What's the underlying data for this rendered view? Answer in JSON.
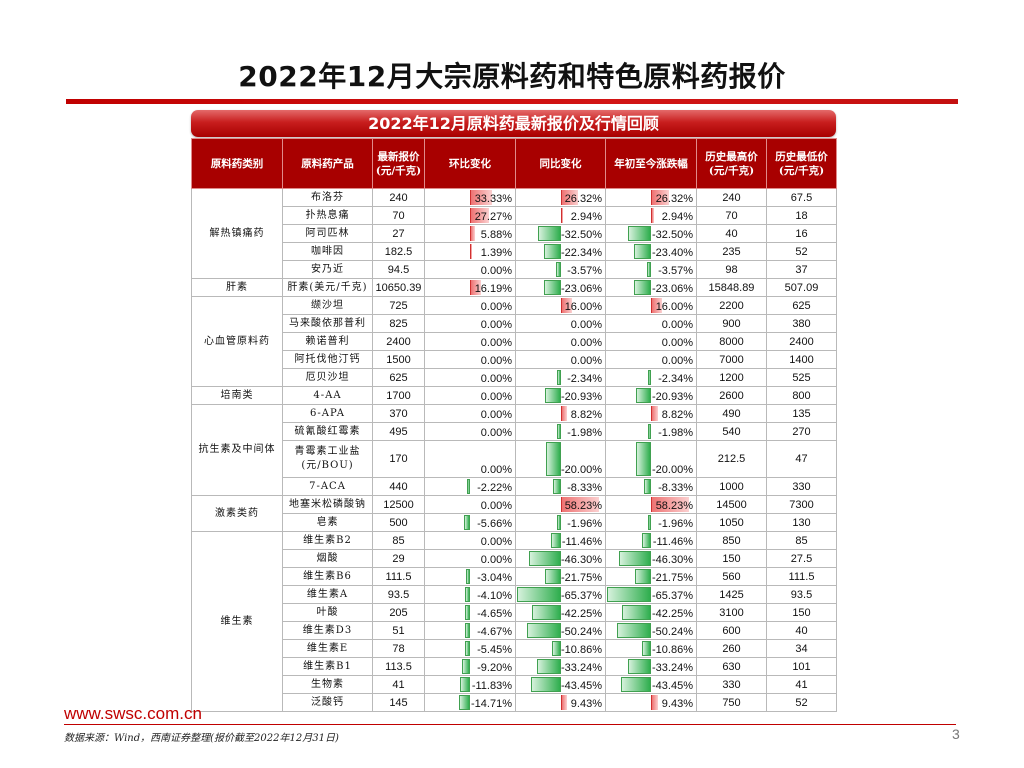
{
  "title": "2022年12月大宗原料药和特色原料药报价",
  "banner": "2022年12月原料药最新报价及行情回顾",
  "headers": [
    "原料药类别",
    "原料药产品",
    "最新报价 (元/千克)",
    "环比变化",
    "同比变化",
    "年初至今涨跌幅",
    "历史最高价 (元/千克)",
    "历史最低价 (元/千克)"
  ],
  "rows": [
    {
      "category": "解热镇痛药",
      "product": "布洛芬",
      "price": "240",
      "mom": "33.33%",
      "yoy": "26.32%",
      "ytd": "26.32%",
      "high": "240",
      "low": "67.5",
      "mom_v": 33.33,
      "yoy_v": 26.32,
      "ytd_v": 26.32
    },
    {
      "category": "",
      "product": "扑热息痛",
      "price": "70",
      "mom": "27.27%",
      "yoy": "2.94%",
      "ytd": "2.94%",
      "high": "70",
      "low": "18",
      "mom_v": 27.27,
      "yoy_v": 2.94,
      "ytd_v": 2.94
    },
    {
      "category": "",
      "product": "阿司匹林",
      "price": "27",
      "mom": "5.88%",
      "yoy": "-32.50%",
      "ytd": "-32.50%",
      "high": "40",
      "low": "16",
      "mom_v": 5.88,
      "yoy_v": -32.5,
      "ytd_v": -32.5
    },
    {
      "category": "",
      "product": "咖啡因",
      "price": "182.5",
      "mom": "1.39%",
      "yoy": "-22.34%",
      "ytd": "-23.40%",
      "high": "235",
      "low": "52",
      "mom_v": 1.39,
      "yoy_v": -22.34,
      "ytd_v": -23.4
    },
    {
      "category": "",
      "product": "安乃近",
      "price": "94.5",
      "mom": "0.00%",
      "yoy": "-3.57%",
      "ytd": "-3.57%",
      "high": "98",
      "low": "37",
      "mom_v": 0,
      "yoy_v": -3.57,
      "ytd_v": -3.57
    },
    {
      "category": "肝素",
      "product": "肝素(美元/千克)",
      "price": "10650.39",
      "mom": "16.19%",
      "yoy": "-23.06%",
      "ytd": "-23.06%",
      "high": "15848.89",
      "low": "507.09",
      "mom_v": 16.19,
      "yoy_v": -23.06,
      "ytd_v": -23.06
    },
    {
      "category": "心血管原料药",
      "product": "缬沙坦",
      "price": "725",
      "mom": "0.00%",
      "yoy": "16.00%",
      "ytd": "16.00%",
      "high": "2200",
      "low": "625",
      "mom_v": 0,
      "yoy_v": 16,
      "ytd_v": 16
    },
    {
      "category": "",
      "product": "马来酸依那普利",
      "price": "825",
      "mom": "0.00%",
      "yoy": "0.00%",
      "ytd": "0.00%",
      "high": "900",
      "low": "380",
      "mom_v": 0,
      "yoy_v": 0,
      "ytd_v": 0
    },
    {
      "category": "",
      "product": "赖诺普利",
      "price": "2400",
      "mom": "0.00%",
      "yoy": "0.00%",
      "ytd": "0.00%",
      "high": "8000",
      "low": "2400",
      "mom_v": 0,
      "yoy_v": 0,
      "ytd_v": 0
    },
    {
      "category": "",
      "product": "阿托伐他汀钙",
      "price": "1500",
      "mom": "0.00%",
      "yoy": "0.00%",
      "ytd": "0.00%",
      "high": "7000",
      "low": "1400",
      "mom_v": 0,
      "yoy_v": 0,
      "ytd_v": 0
    },
    {
      "category": "",
      "product": "厄贝沙坦",
      "price": "625",
      "mom": "0.00%",
      "yoy": "-2.34%",
      "ytd": "-2.34%",
      "high": "1200",
      "low": "525",
      "mom_v": 0,
      "yoy_v": -2.34,
      "ytd_v": -2.34
    },
    {
      "category": "培南类",
      "product": "4-AA",
      "price": "1700",
      "mom": "0.00%",
      "yoy": "-20.93%",
      "ytd": "-20.93%",
      "high": "2600",
      "low": "800",
      "mom_v": 0,
      "yoy_v": -20.93,
      "ytd_v": -20.93
    },
    {
      "category": "抗生素及中间体",
      "product": "6-APA",
      "price": "370",
      "mom": "0.00%",
      "yoy": "8.82%",
      "ytd": "8.82%",
      "high": "490",
      "low": "135",
      "mom_v": 0,
      "yoy_v": 8.82,
      "ytd_v": 8.82
    },
    {
      "category": "",
      "product": "硫氰酸红霉素",
      "price": "495",
      "mom": "0.00%",
      "yoy": "-1.98%",
      "ytd": "-1.98%",
      "high": "540",
      "low": "270",
      "mom_v": 0,
      "yoy_v": -1.98,
      "ytd_v": -1.98
    },
    {
      "category": "",
      "product": "青霉素工业盐 (元/BOU)",
      "price": "170",
      "mom": "0.00%",
      "yoy": "-20.00%",
      "ytd": "-20.00%",
      "high": "212.5",
      "low": "47",
      "mom_v": 0,
      "yoy_v": -20,
      "ytd_v": -20,
      "tall": true
    },
    {
      "category": "",
      "product": "7-ACA",
      "price": "440",
      "mom": "-2.22%",
      "yoy": "-8.33%",
      "ytd": "-8.33%",
      "high": "1000",
      "low": "330",
      "mom_v": -2.22,
      "yoy_v": -8.33,
      "ytd_v": -8.33
    },
    {
      "category": "激素类药",
      "product": "地塞米松磷酸钠",
      "price": "12500",
      "mom": "0.00%",
      "yoy": "58.23%",
      "ytd": "58.23%",
      "high": "14500",
      "low": "7300",
      "mom_v": 0,
      "yoy_v": 58.23,
      "ytd_v": 58.23
    },
    {
      "category": "",
      "product": "皂素",
      "price": "500",
      "mom": "-5.66%",
      "yoy": "-1.96%",
      "ytd": "-1.96%",
      "high": "1050",
      "low": "130",
      "mom_v": -5.66,
      "yoy_v": -1.96,
      "ytd_v": -1.96
    },
    {
      "category": "维生素",
      "product": "维生素B2",
      "price": "85",
      "mom": "0.00%",
      "yoy": "-11.46%",
      "ytd": "-11.46%",
      "high": "850",
      "low": "85",
      "mom_v": 0,
      "yoy_v": -11.46,
      "ytd_v": -11.46
    },
    {
      "category": "",
      "product": "烟酸",
      "price": "29",
      "mom": "0.00%",
      "yoy": "-46.30%",
      "ytd": "-46.30%",
      "high": "150",
      "low": "27.5",
      "mom_v": 0,
      "yoy_v": -46.3,
      "ytd_v": -46.3
    },
    {
      "category": "",
      "product": "维生素B6",
      "price": "111.5",
      "mom": "-3.04%",
      "yoy": "-21.75%",
      "ytd": "-21.75%",
      "high": "560",
      "low": "111.5",
      "mom_v": -3.04,
      "yoy_v": -21.75,
      "ytd_v": -21.75
    },
    {
      "category": "",
      "product": "维生素A",
      "price": "93.5",
      "mom": "-4.10%",
      "yoy": "-65.37%",
      "ytd": "-65.37%",
      "high": "1425",
      "low": "93.5",
      "mom_v": -4.1,
      "yoy_v": -65.37,
      "ytd_v": -65.37
    },
    {
      "category": "",
      "product": "叶酸",
      "price": "205",
      "mom": "-4.65%",
      "yoy": "-42.25%",
      "ytd": "-42.25%",
      "high": "3100",
      "low": "150",
      "mom_v": -4.65,
      "yoy_v": -42.25,
      "ytd_v": -42.25
    },
    {
      "category": "",
      "product": "维生素D3",
      "price": "51",
      "mom": "-4.67%",
      "yoy": "-50.24%",
      "ytd": "-50.24%",
      "high": "600",
      "low": "40",
      "mom_v": -4.67,
      "yoy_v": -50.24,
      "ytd_v": -50.24
    },
    {
      "category": "",
      "product": "维生素E",
      "price": "78",
      "mom": "-5.45%",
      "yoy": "-10.86%",
      "ytd": "-10.86%",
      "high": "260",
      "low": "34",
      "mom_v": -5.45,
      "yoy_v": -10.86,
      "ytd_v": -10.86
    },
    {
      "category": "",
      "product": "维生素B1",
      "price": "113.5",
      "mom": "-9.20%",
      "yoy": "-33.24%",
      "ytd": "-33.24%",
      "high": "630",
      "low": "101",
      "mom_v": -9.2,
      "yoy_v": -33.24,
      "ytd_v": -33.24
    },
    {
      "category": "",
      "product": "生物素",
      "price": "41",
      "mom": "-11.83%",
      "yoy": "-43.45%",
      "ytd": "-43.45%",
      "high": "330",
      "low": "41",
      "mom_v": -11.83,
      "yoy_v": -43.45,
      "ytd_v": -43.45
    },
    {
      "category": "",
      "product": "泛酸钙",
      "price": "145",
      "mom": "-14.71%",
      "yoy": "9.43%",
      "ytd": "9.43%",
      "high": "750",
      "low": "52",
      "mom_v": -14.71,
      "yoy_v": 9.43,
      "ytd_v": 9.43
    }
  ],
  "footer": {
    "url": "www.swsc.com.cn",
    "source": "数据来源：Wind，西南证券整理(报价截至2022年12月31日)",
    "page": "3"
  },
  "colors": {
    "accent": "#c00000",
    "header_bg": "#a80000",
    "pos_bar": "#ee7272",
    "neg_bar": "#2fae4e"
  }
}
